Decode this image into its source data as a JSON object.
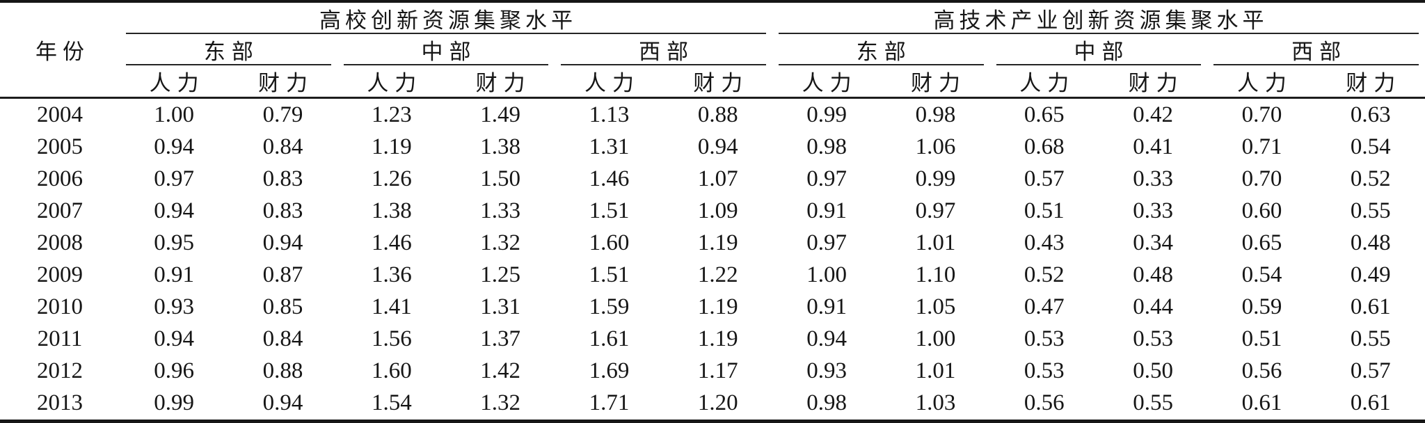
{
  "table": {
    "year_header": "年份",
    "metric_labels": {
      "human": "人力",
      "financial": "财力"
    },
    "groups": [
      {
        "title": "高校创新资源集聚水平",
        "regions": [
          {
            "label": "东部"
          },
          {
            "label": "中部"
          },
          {
            "label": "西部"
          }
        ]
      },
      {
        "title": "高技术产业创新资源集聚水平",
        "regions": [
          {
            "label": "东部"
          },
          {
            "label": "中部"
          },
          {
            "label": "西部"
          }
        ]
      }
    ],
    "rows": [
      {
        "year": "2004",
        "values": [
          "1.00",
          "0.79",
          "1.23",
          "1.49",
          "1.13",
          "0.88",
          "0.99",
          "0.98",
          "0.65",
          "0.42",
          "0.70",
          "0.63"
        ]
      },
      {
        "year": "2005",
        "values": [
          "0.94",
          "0.84",
          "1.19",
          "1.38",
          "1.31",
          "0.94",
          "0.98",
          "1.06",
          "0.68",
          "0.41",
          "0.71",
          "0.54"
        ]
      },
      {
        "year": "2006",
        "values": [
          "0.97",
          "0.83",
          "1.26",
          "1.50",
          "1.46",
          "1.07",
          "0.97",
          "0.99",
          "0.57",
          "0.33",
          "0.70",
          "0.52"
        ]
      },
      {
        "year": "2007",
        "values": [
          "0.94",
          "0.83",
          "1.38",
          "1.33",
          "1.51",
          "1.09",
          "0.91",
          "0.97",
          "0.51",
          "0.33",
          "0.60",
          "0.55"
        ]
      },
      {
        "year": "2008",
        "values": [
          "0.95",
          "0.94",
          "1.46",
          "1.32",
          "1.60",
          "1.19",
          "0.97",
          "1.01",
          "0.43",
          "0.34",
          "0.65",
          "0.48"
        ]
      },
      {
        "year": "2009",
        "values": [
          "0.91",
          "0.87",
          "1.36",
          "1.25",
          "1.51",
          "1.22",
          "1.00",
          "1.10",
          "0.52",
          "0.48",
          "0.54",
          "0.49"
        ]
      },
      {
        "year": "2010",
        "values": [
          "0.93",
          "0.85",
          "1.41",
          "1.31",
          "1.59",
          "1.19",
          "0.91",
          "1.05",
          "0.47",
          "0.44",
          "0.59",
          "0.61"
        ]
      },
      {
        "year": "2011",
        "values": [
          "0.94",
          "0.84",
          "1.56",
          "1.37",
          "1.61",
          "1.19",
          "0.94",
          "1.00",
          "0.53",
          "0.53",
          "0.51",
          "0.55"
        ]
      },
      {
        "year": "2012",
        "values": [
          "0.96",
          "0.88",
          "1.60",
          "1.42",
          "1.69",
          "1.17",
          "0.93",
          "1.01",
          "0.53",
          "0.50",
          "0.56",
          "0.57"
        ]
      },
      {
        "year": "2013",
        "values": [
          "0.99",
          "0.94",
          "1.54",
          "1.32",
          "1.71",
          "1.20",
          "0.98",
          "1.03",
          "0.56",
          "0.55",
          "0.61",
          "0.61"
        ]
      }
    ],
    "line_color": "#1a1a1a",
    "text_color": "#161616"
  }
}
